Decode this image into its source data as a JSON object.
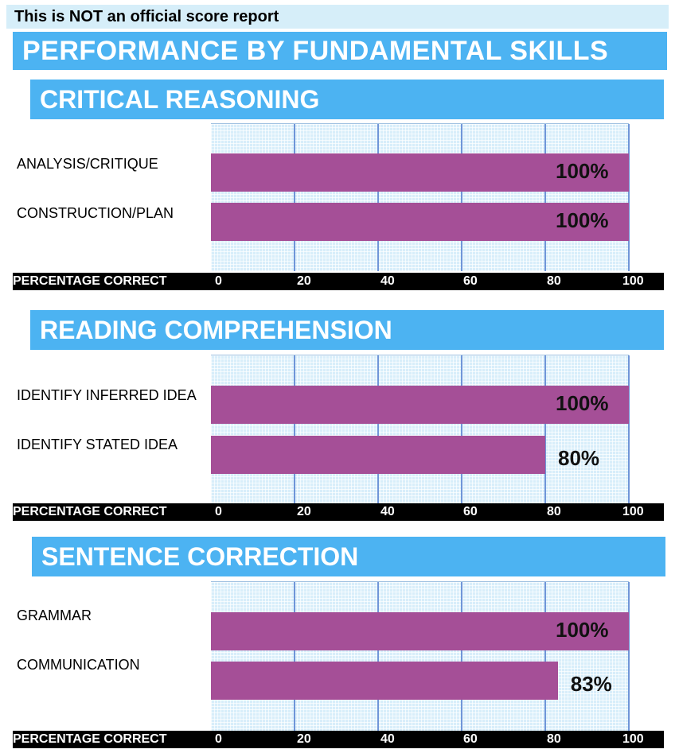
{
  "notice": "This is NOT an official score report",
  "title": "PERFORMANCE BY FUNDAMENTAL SKILLS",
  "chart_data": [
    {
      "type": "bar",
      "orientation": "horizontal",
      "title": "CRITICAL REASONING",
      "categories": [
        "ANALYSIS/CRITIQUE",
        "CONSTRUCTION/PLAN"
      ],
      "values": [
        100,
        100
      ],
      "labels": [
        "100%",
        "100%"
      ],
      "xlabel": "PERCENTAGE CORRECT",
      "xlim": [
        0,
        100
      ],
      "ticks": [
        "0",
        "20",
        "40",
        "60",
        "80",
        "100"
      ],
      "grid": true,
      "color": "#a54f97"
    },
    {
      "type": "bar",
      "orientation": "horizontal",
      "title": "READING COMPREHENSION",
      "categories": [
        "IDENTIFY INFERRED IDEA",
        "IDENTIFY STATED IDEA"
      ],
      "values": [
        100,
        80
      ],
      "labels": [
        "100%",
        "80%"
      ],
      "xlabel": "PERCENTAGE CORRECT",
      "xlim": [
        0,
        100
      ],
      "ticks": [
        "0",
        "20",
        "40",
        "60",
        "80",
        "100"
      ],
      "grid": true,
      "color": "#a54f97"
    },
    {
      "type": "bar",
      "orientation": "horizontal",
      "title": "SENTENCE CORRECTION",
      "categories": [
        "GRAMMAR",
        "COMMUNICATION"
      ],
      "values": [
        100,
        83
      ],
      "labels": [
        "100%",
        "83%"
      ],
      "xlabel": "PERCENTAGE CORRECT",
      "xlim": [
        0,
        100
      ],
      "ticks": [
        "0",
        "20",
        "40",
        "60",
        "80",
        "100"
      ],
      "grid": true,
      "color": "#a54f97"
    }
  ]
}
